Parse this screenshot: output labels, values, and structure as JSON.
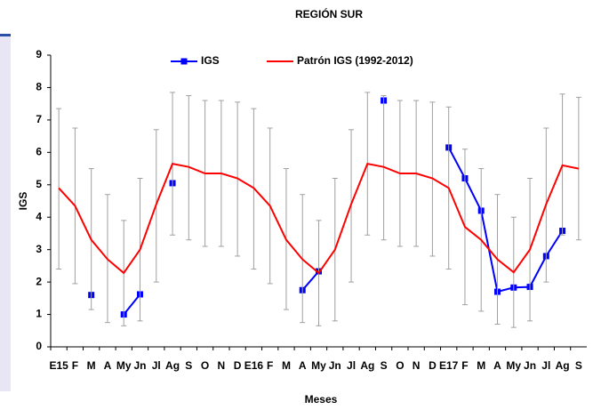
{
  "chart_data": {
    "type": "line",
    "title": "REGIÓN SUR",
    "xlabel": "Meses",
    "ylabel": "IGS",
    "categories": [
      "E15",
      "F",
      "M",
      "A",
      "My",
      "Jn",
      "Jl",
      "Ag",
      "S",
      "O",
      "N",
      "D",
      "E16",
      "F",
      "M",
      "A",
      "My",
      "Jn",
      "Jl",
      "Ag",
      "S",
      "O",
      "N",
      "D",
      "E17",
      "F",
      "M",
      "A",
      "My",
      "Jn",
      "Jl",
      "Ag",
      "S"
    ],
    "ylim": [
      0,
      9
    ],
    "yticks": [
      0,
      1,
      2,
      3,
      4,
      5,
      6,
      7,
      8,
      9
    ],
    "grid": false,
    "legend": "top",
    "series": [
      {
        "name": "IGS",
        "color": "#0000ff",
        "marker": "square",
        "values": [
          null,
          null,
          1.6,
          null,
          1.0,
          1.62,
          null,
          5.05,
          null,
          null,
          null,
          null,
          null,
          null,
          null,
          1.75,
          2.33,
          null,
          null,
          null,
          7.6,
          null,
          null,
          null,
          6.15,
          5.2,
          4.2,
          1.7,
          1.83,
          1.85,
          2.8,
          3.58,
          null
        ]
      },
      {
        "name": "Patrón IGS (1992-2012)",
        "color": "#ff0000",
        "marker": "none",
        "error_color": "#a0a0a0",
        "values": [
          4.9,
          4.35,
          3.3,
          2.7,
          2.28,
          3.0,
          4.4,
          5.65,
          5.55,
          5.35,
          5.35,
          5.2,
          4.9,
          4.35,
          3.3,
          2.7,
          2.28,
          3.0,
          4.4,
          5.65,
          5.55,
          5.35,
          5.35,
          5.2,
          4.9,
          3.7,
          3.3,
          2.7,
          2.3,
          3.0,
          4.4,
          5.6,
          5.5
        ],
        "lower": [
          2.4,
          1.95,
          1.15,
          0.75,
          0.65,
          0.8,
          2.0,
          3.45,
          3.3,
          3.1,
          3.1,
          2.8,
          2.4,
          1.95,
          1.15,
          0.75,
          0.65,
          0.8,
          2.0,
          3.45,
          3.3,
          3.1,
          3.1,
          2.8,
          2.4,
          1.3,
          1.1,
          0.7,
          0.6,
          0.8,
          2.0,
          3.45,
          3.3
        ],
        "upper": [
          7.35,
          6.75,
          5.5,
          4.7,
          3.9,
          5.2,
          6.7,
          7.85,
          7.75,
          7.6,
          7.6,
          7.55,
          7.35,
          6.75,
          5.5,
          4.7,
          3.9,
          5.2,
          6.7,
          7.85,
          7.75,
          7.6,
          7.6,
          7.55,
          7.4,
          6.1,
          5.5,
          4.7,
          4.0,
          5.2,
          6.75,
          7.8,
          7.7
        ]
      }
    ]
  }
}
